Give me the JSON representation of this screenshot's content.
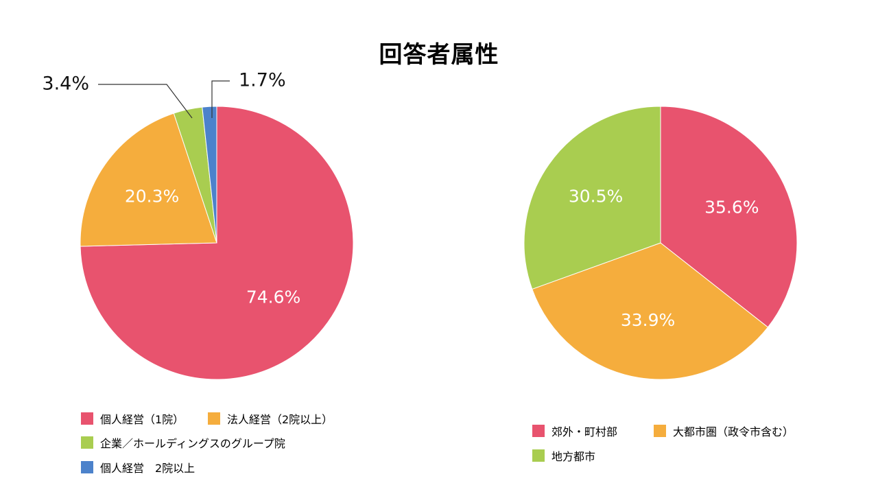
{
  "title": "回答者属性",
  "colors": {
    "red": "#E8536E",
    "orange": "#F5AD3D",
    "green": "#A9CD50",
    "blue": "#4C82CB"
  },
  "chart_data": [
    {
      "type": "pie",
      "title": "",
      "slices": [
        {
          "label": "個人経営（1院）",
          "value": 74.6,
          "display": "74.6%",
          "color": "#E8536E"
        },
        {
          "label": "法人経営（2院以上）",
          "value": 20.3,
          "display": "20.3%",
          "color": "#F5AD3D"
        },
        {
          "label": "企業／ホールディングスのグループ院",
          "value": 3.4,
          "display": "3.4%",
          "color": "#A9CD50"
        },
        {
          "label": "個人経営　2院以上",
          "value": 1.7,
          "display": "1.7%",
          "color": "#4C82CB"
        }
      ],
      "legend_position": "bottom-left"
    },
    {
      "type": "pie",
      "title": "",
      "slices": [
        {
          "label": "郊外・町村部",
          "value": 35.6,
          "display": "35.6%",
          "color": "#E8536E"
        },
        {
          "label": "大都市圏（政令市含む）",
          "value": 33.9,
          "display": "33.9%",
          "color": "#F5AD3D"
        },
        {
          "label": "地方都市",
          "value": 30.5,
          "display": "30.5%",
          "color": "#A9CD50"
        }
      ],
      "legend_position": "bottom"
    }
  ]
}
